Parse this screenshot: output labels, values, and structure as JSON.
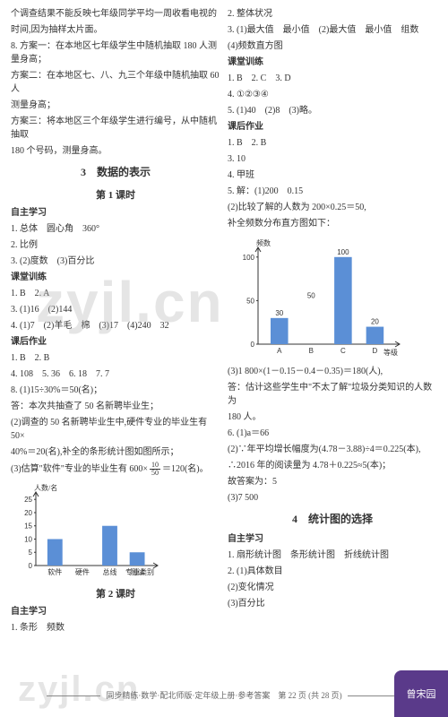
{
  "left": {
    "p1": "个调查结果不能反映七年级同学平均一周收看电视的",
    "p2": "时间,因为抽样太片面。",
    "p3": "8. 方案一：在本地区七年级学生中随机抽取 180 人测量身高；",
    "p4": "方案二：在本地区七、八、九三个年级中随机抽取 60 人",
    "p5": "测量身高；",
    "p6": "方案三：将本地区三个年级学生进行编号，从中随机抽取",
    "p7": "180 个号码，测量身高。",
    "sec3": "3　数据的表示",
    "lesson1": "第 1 课时",
    "zzxx": "自主学习",
    "z1": "1. 总体　圆心角　360°",
    "z2": "2. 比例",
    "z3": "3. (2)度数　(3)百分比",
    "ktxl": "课堂训练",
    "k1": "1. B　2. A",
    "k2": "3. (1)16　(2)144",
    "k3": "4. (1)7　(2)羊毛　棉　(3)17　(4)240　32",
    "khzy": "课后作业",
    "h1": "1. B　2. B",
    "h2": "4. 108　5. 36　6. 18　7. 7",
    "h3": "8. (1)15÷30%＝50(名)；",
    "h4": "答：本次共抽查了 50 名新聘毕业生；",
    "h5": "(2)调查的 50 名新聘毕业生中,硬件专业的毕业生有 50×",
    "h6": "40%＝20(名),补全的条形统计图如图所示；",
    "h7_a": "(3)估算\"软件\"专业的毕业生有 600×",
    "h7_b": "＝120(名)。",
    "frac_num": "10",
    "frac_den": "50",
    "chart1": {
      "ylabel": "人数/名",
      "ymax": 25,
      "ytick": 5,
      "cats": [
        "软件",
        "硬件",
        "总线",
        "测试",
        "专业类别"
      ],
      "vals": [
        10,
        20,
        15,
        5
      ],
      "bar_color": "#5b8fd6",
      "dashed_val": 20,
      "dashed_idx": 1
    },
    "lesson2": "第 2 课时",
    "zzxx2": "自主学习",
    "z2_1": "1. 条形　频数"
  },
  "right": {
    "r1": "2. 整体状况",
    "r2": "3. (1)最大值　最小值　(2)最大值　最小值　组数",
    "r3": "(4)频数直方图",
    "ktxl": "课堂训练",
    "k1": "1. B　2. C　3. D",
    "k2": "4. ①②③④",
    "k3": "5. (1)40　(2)8　(3)略。",
    "khzy": "课后作业",
    "h1": "1. B　2. B",
    "h2": "3. 10",
    "h3": "4. 甲班",
    "h4": "5. 解：(1)200　0.15",
    "h5": "(2)比较了解的人数为 200×0.25＝50,",
    "h6": "补全频数分布直方图如下：",
    "chart2": {
      "ylabel": "频数",
      "xlabel": "等级",
      "ymax": 100,
      "ytick": 50,
      "cats": [
        "A",
        "B",
        "C",
        "D"
      ],
      "vals": [
        30,
        50,
        100,
        20
      ],
      "bar_color": "#5b8fd6",
      "dashed_idx": 1
    },
    "h7": "(3)1 800×(1－0.15－0.4－0.35)＝180(人),",
    "h8": "答：估计这些学生中\"不太了解\"垃圾分类知识的人数为",
    "h9": "180 人。",
    "h10": "6. (1)a＝66",
    "h11": "(2)∵年平均增长幅度为(4.78－3.88)÷4＝0.225(本),",
    "h12": "∴2016 年的阅读量为 4.78＋0.225≈5(本)；",
    "h13": "故答案为：5",
    "h14": "(3)7 500",
    "sec4": "4　统计图的选择",
    "zzxx": "自主学习",
    "z1": "1. 扇形统计图　条形统计图　折线统计图",
    "z2": "2. (1)具体数目",
    "z3": "(2)变化情况",
    "z4": "(3)百分比"
  },
  "footer": "同步精练·数学·配北师版·定年级上册·参考答案　第 22 页 (共 28 页)",
  "badge": "曾宋园",
  "watermark": "zyjl.cn"
}
